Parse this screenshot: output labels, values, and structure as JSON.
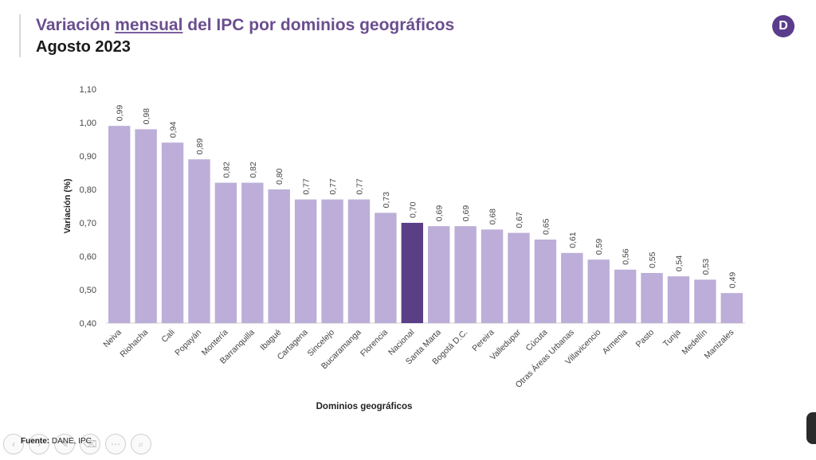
{
  "header": {
    "title_pre": "Variación ",
    "title_underlined": "mensual",
    "title_post": " del IPC por dominios geográficos",
    "subtitle": "Agosto 2023",
    "logo_letter": "D"
  },
  "footer": {
    "source_label": "Fuente:",
    "source_text": " DANE, IPC"
  },
  "toolbar": {
    "icons": [
      "arrow-left-icon",
      "arrow-right-icon",
      "pen-icon",
      "eraser-icon",
      "more-icon",
      "zoom-icon"
    ]
  },
  "colors": {
    "bar": "#bcaed8",
    "highlight": "#5b3f86",
    "axis_text": "#444444",
    "title": "#6a4e8f"
  },
  "chart_data": {
    "type": "bar",
    "title": "",
    "xlabel": "Dominios geográficos",
    "ylabel": "Variación (%)",
    "ylim": [
      0.4,
      1.1
    ],
    "yticks": [
      "0,40",
      "0,50",
      "0,60",
      "0,70",
      "0,80",
      "0,90",
      "1,00",
      "1,10"
    ],
    "highlight_category": "Nacional",
    "categories": [
      "Neiva",
      "Riohacha",
      "Cali",
      "Popayán",
      "Montería",
      "Barranquilla",
      "Ibagué",
      "Cartagena",
      "Sincelejo",
      "Bucaramanga",
      "Florencia",
      "Nacional",
      "Santa Marta",
      "Bogotá D.C.",
      "Pereira",
      "Valledupar",
      "Cúcuta",
      "Otras Áreas Urbanas",
      "Villavicencio",
      "Armenia",
      "Pasto",
      "Tunja",
      "Medellín",
      "Manizales"
    ],
    "values": [
      0.99,
      0.98,
      0.94,
      0.89,
      0.82,
      0.82,
      0.8,
      0.77,
      0.77,
      0.77,
      0.73,
      0.7,
      0.69,
      0.69,
      0.68,
      0.67,
      0.65,
      0.61,
      0.59,
      0.56,
      0.55,
      0.54,
      0.53,
      0.49
    ],
    "value_labels": [
      "0,99",
      "0,98",
      "0,94",
      "0,89",
      "0,82",
      "0,82",
      "0,80",
      "0,77",
      "0,77",
      "0,77",
      "0,73",
      "0,70",
      "0,69",
      "0,69",
      "0,68",
      "0,67",
      "0,65",
      "0,61",
      "0,59",
      "0,56",
      "0,55",
      "0,54",
      "0,53",
      "0,49"
    ]
  }
}
